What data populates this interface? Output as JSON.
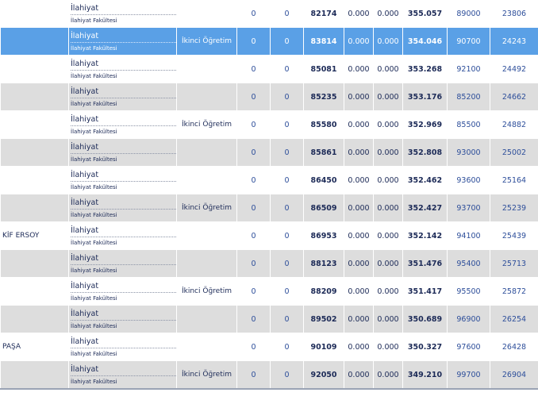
{
  "rows": [
    {
      "univ": "",
      "prog": "İlahiyat",
      "fac": "İlahiyat Fakültesi",
      "type": "",
      "a": "0",
      "b": "0",
      "rank": "82174",
      "c": "0.000",
      "d": "0.000",
      "score": "355.057",
      "quota": "89000",
      "last": "23806"
    },
    {
      "univ": "",
      "prog": "İlahiyat",
      "fac": "İlahiyat Fakültesi",
      "type": "İkinci Öğretim",
      "a": "0",
      "b": "0",
      "rank": "83814",
      "c": "0.000",
      "d": "0.000",
      "score": "354.046",
      "quota": "90700",
      "last": "24243"
    },
    {
      "univ": "",
      "prog": "İlahiyat",
      "fac": "İlahiyat Fakültesi",
      "type": "",
      "a": "0",
      "b": "0",
      "rank": "85081",
      "c": "0.000",
      "d": "0.000",
      "score": "353.268",
      "quota": "92100",
      "last": "24492"
    },
    {
      "univ": "",
      "prog": "İlahiyat",
      "fac": "İlahiyat Fakültesi",
      "type": "",
      "a": "0",
      "b": "0",
      "rank": "85235",
      "c": "0.000",
      "d": "0.000",
      "score": "353.176",
      "quota": "85200",
      "last": "24662"
    },
    {
      "univ": "",
      "prog": "İlahiyat",
      "fac": "İlahiyat Fakültesi",
      "type": "İkinci Öğretim",
      "a": "0",
      "b": "0",
      "rank": "85580",
      "c": "0.000",
      "d": "0.000",
      "score": "352.969",
      "quota": "85500",
      "last": "24882"
    },
    {
      "univ": "",
      "prog": "İlahiyat",
      "fac": "İlahiyat Fakültesi",
      "type": "",
      "a": "0",
      "b": "0",
      "rank": "85861",
      "c": "0.000",
      "d": "0.000",
      "score": "352.808",
      "quota": "93000",
      "last": "25002"
    },
    {
      "univ": "",
      "prog": "İlahiyat",
      "fac": "İlahiyat Fakültesi",
      "type": "",
      "a": "0",
      "b": "0",
      "rank": "86450",
      "c": "0.000",
      "d": "0.000",
      "score": "352.462",
      "quota": "93600",
      "last": "25164"
    },
    {
      "univ": "",
      "prog": "İlahiyat",
      "fac": "İlahiyat Fakültesi",
      "type": "İkinci Öğretim",
      "a": "0",
      "b": "0",
      "rank": "86509",
      "c": "0.000",
      "d": "0.000",
      "score": "352.427",
      "quota": "93700",
      "last": "25239"
    },
    {
      "univ": "KİF ERSOY",
      "prog": "İlahiyat",
      "fac": "İlahiyat Fakültesi",
      "type": "",
      "a": "0",
      "b": "0",
      "rank": "86953",
      "c": "0.000",
      "d": "0.000",
      "score": "352.142",
      "quota": "94100",
      "last": "25439"
    },
    {
      "univ": "",
      "prog": "İlahiyat",
      "fac": "İlahiyat Fakültesi",
      "type": "",
      "a": "0",
      "b": "0",
      "rank": "88123",
      "c": "0.000",
      "d": "0.000",
      "score": "351.476",
      "quota": "95400",
      "last": "25713"
    },
    {
      "univ": "",
      "prog": "İlahiyat",
      "fac": "İlahiyat Fakültesi",
      "type": "İkinci Öğretim",
      "a": "0",
      "b": "0",
      "rank": "88209",
      "c": "0.000",
      "d": "0.000",
      "score": "351.417",
      "quota": "95500",
      "last": "25872"
    },
    {
      "univ": "",
      "prog": "İlahiyat",
      "fac": "İlahiyat Fakültesi",
      "type": "",
      "a": "0",
      "b": "0",
      "rank": "89502",
      "c": "0.000",
      "d": "0.000",
      "score": "350.689",
      "quota": "96900",
      "last": "26254"
    },
    {
      "univ": "PAŞA",
      "prog": "İlahiyat",
      "fac": "İlahiyat Fakültesi",
      "type": "",
      "a": "0",
      "b": "0",
      "rank": "90109",
      "c": "0.000",
      "d": "0.000",
      "score": "350.327",
      "quota": "97600",
      "last": "26428"
    },
    {
      "univ": "",
      "prog": "İlahiyat",
      "fac": "İlahiyat Fakültesi",
      "type": "İkinci Öğretim",
      "a": "0",
      "b": "0",
      "rank": "92050",
      "c": "0.000",
      "d": "0.000",
      "score": "349.210",
      "quota": "99700",
      "last": "26904"
    }
  ],
  "colors": {
    "selected_row": "#5aa0e6",
    "even_row": "#dddddd",
    "odd_row": "#ffffff",
    "text": "#1c2a57"
  }
}
